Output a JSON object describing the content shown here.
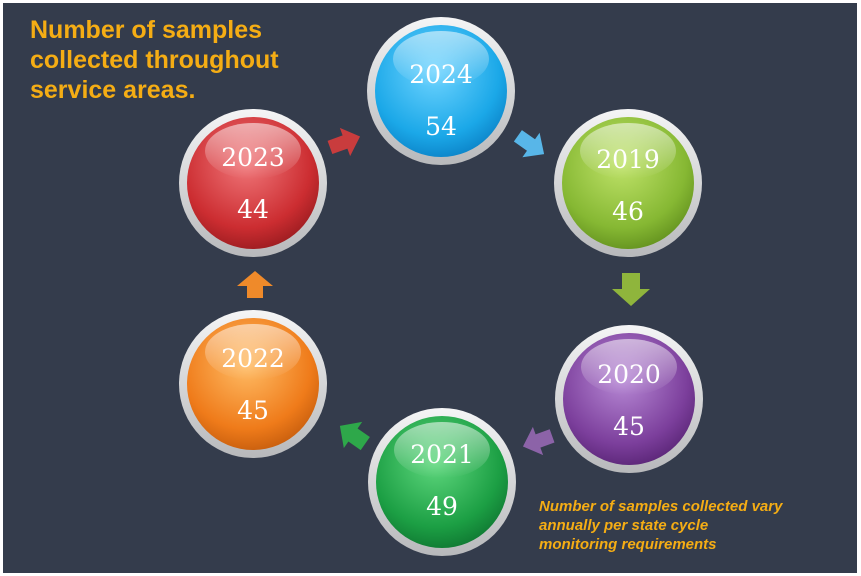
{
  "title_lines": [
    "Number of samples",
    "collected throughout",
    "service areas."
  ],
  "note_lines": [
    "Number of samples collected vary",
    "annually per state cycle",
    "monitoring requirements"
  ],
  "nodes": [
    {
      "year": "2024",
      "count": "54",
      "color": "#2bb4ee"
    },
    {
      "year": "2019",
      "count": "46",
      "color": "#8fc03a"
    },
    {
      "year": "2020",
      "count": "45",
      "color": "#8a4ba8"
    },
    {
      "year": "2021",
      "count": "49",
      "color": "#20a84a"
    },
    {
      "year": "2022",
      "count": "45",
      "color": "#f07d1c"
    },
    {
      "year": "2023",
      "count": "44",
      "color": "#d33034"
    }
  ],
  "arrow_colors": [
    "#58b6e8",
    "#8fb53c",
    "#8c63a8",
    "#2ea84a",
    "#ef8a2a",
    "#c93c3d"
  ]
}
